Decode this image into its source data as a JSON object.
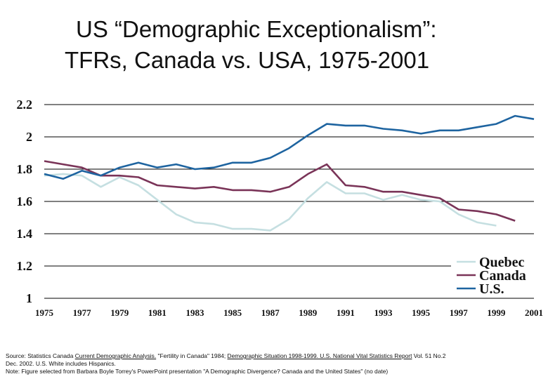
{
  "title": {
    "line1": "US “Demographic Exceptionalism”:",
    "line2": "TFRs, Canada vs. USA, 1975-2001"
  },
  "chart_data": {
    "type": "line",
    "x": [
      1975,
      1976,
      1977,
      1978,
      1979,
      1980,
      1981,
      1982,
      1983,
      1984,
      1985,
      1986,
      1987,
      1988,
      1989,
      1990,
      1991,
      1992,
      1993,
      1994,
      1995,
      1996,
      1997,
      1998,
      1999,
      2000,
      2001
    ],
    "x_tick_labels": [
      "1975",
      "1977",
      "1979",
      "1981",
      "1983",
      "1985",
      "1987",
      "1989",
      "1991",
      "1993",
      "1995",
      "1997",
      "1999",
      "2001"
    ],
    "y_tick_labels": [
      "2.2",
      "2",
      "1.8",
      "1.6",
      "1.4",
      "1.2",
      "1"
    ],
    "ylim": [
      1,
      2.2
    ],
    "grid": true,
    "legend_position": "bottom-right",
    "series": [
      {
        "name": "Quebec",
        "color": "#c5dfe1",
        "values": [
          1.76,
          1.77,
          1.76,
          1.69,
          1.75,
          1.7,
          1.61,
          1.52,
          1.47,
          1.46,
          1.43,
          1.43,
          1.42,
          1.49,
          1.62,
          1.72,
          1.65,
          1.65,
          1.61,
          1.64,
          1.61,
          1.6,
          1.52,
          1.47,
          1.45,
          null,
          null
        ]
      },
      {
        "name": "Canada",
        "color": "#7a3458",
        "values": [
          1.85,
          1.83,
          1.81,
          1.76,
          1.76,
          1.75,
          1.7,
          1.69,
          1.68,
          1.69,
          1.67,
          1.67,
          1.66,
          1.69,
          1.77,
          1.83,
          1.7,
          1.69,
          1.66,
          1.66,
          1.64,
          1.62,
          1.55,
          1.54,
          1.52,
          1.48,
          null
        ]
      },
      {
        "name": "U.S.",
        "color": "#1e64a0",
        "values": [
          1.77,
          1.74,
          1.79,
          1.76,
          1.81,
          1.84,
          1.81,
          1.83,
          1.8,
          1.81,
          1.84,
          1.84,
          1.87,
          1.93,
          2.01,
          2.08,
          2.07,
          2.07,
          2.05,
          2.04,
          2.02,
          2.04,
          2.04,
          2.06,
          2.08,
          2.13,
          2.11
        ]
      }
    ]
  },
  "source": {
    "prefix": "Source:  Statistics Canada ",
    "ref1": "Current Demographic Analysis.",
    "mid1": " \"Fertility in Canada\" 1984; ",
    "ref2": "Demographic Situation 1998-1999.",
    "mid2": " U.S. National Vital Statistics Report",
    "rest1": " Vol. 51 No.2",
    "line2": "Dec. 2002.  U.S. White includes Hispanics.",
    "line3": "Note: Figure selected from Barbara Boyle Torrey's PowerPoint presentation \"A  Demographic Divergence? Canada and the United States\" (no date)"
  }
}
